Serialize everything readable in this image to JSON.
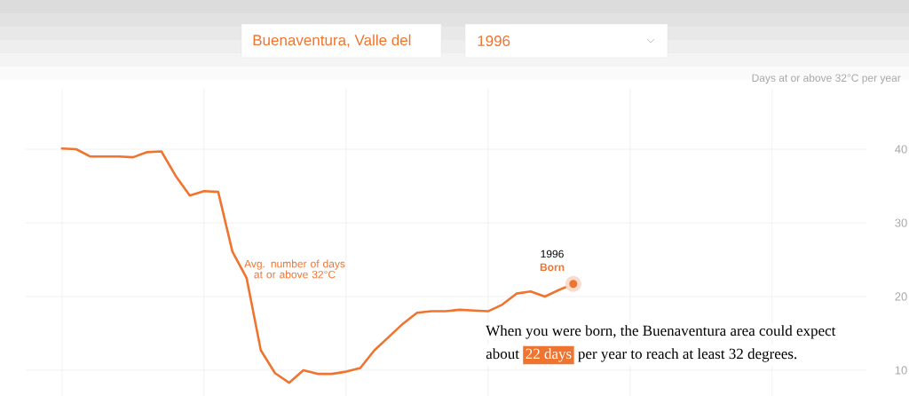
{
  "chart_data": {
    "type": "line",
    "ylabel": "Days at or above 32°C per year",
    "annotations": [
      "Buenaventura, Valle del",
      "1996",
      "Avg. number of days at or above 32°C",
      "1996",
      "Born",
      "When you were born, the Buenaventura area could expect",
      "about",
      "22 days",
      "per year to reach at least 32 degrees."
    ],
    "categories": [
      null,
      null,
      null,
      null,
      null,
      null,
      null,
      null,
      null,
      null,
      null,
      null,
      null,
      null,
      null,
      null,
      null,
      null,
      null,
      null,
      null,
      null,
      null,
      null,
      null,
      null,
      null,
      null,
      null,
      null,
      null,
      null,
      null,
      null,
      null,
      null,
      null,
      null,
      null,
      null,
      null,
      null,
      null,
      null,
      null,
      null,
      null,
      null,
      null,
      null,
      null,
      null,
      null,
      null,
      null,
      null,
      null
    ],
    "series": [
      {
        "color": "#ef7430",
        "values": [
          40.1,
          40.0,
          39.0,
          39.0,
          39.0,
          38.9,
          39.6,
          39.7,
          36.4,
          33.7,
          34.3,
          34.2,
          26.1,
          22.5,
          12.7,
          9.6,
          8.3,
          10.0,
          9.5,
          9.5,
          9.8,
          10.3,
          12.7,
          14.5,
          16.3,
          17.8,
          18.0,
          18.0,
          18.2,
          18.1,
          18.0,
          18.9,
          20.4,
          20.7,
          20.0,
          20.9,
          21.7,
          null,
          null,
          null,
          null,
          null,
          null,
          null,
          null,
          null,
          null,
          null,
          null,
          null,
          null,
          null,
          null,
          null,
          null,
          null,
          null
        ]
      }
    ],
    "ylim": [
      6.5,
      48.2
    ],
    "yticks": [
      10,
      20,
      30,
      40
    ],
    "grid": true,
    "tick_labels": "y",
    "marker": "none",
    "line_style": "solid"
  }
}
